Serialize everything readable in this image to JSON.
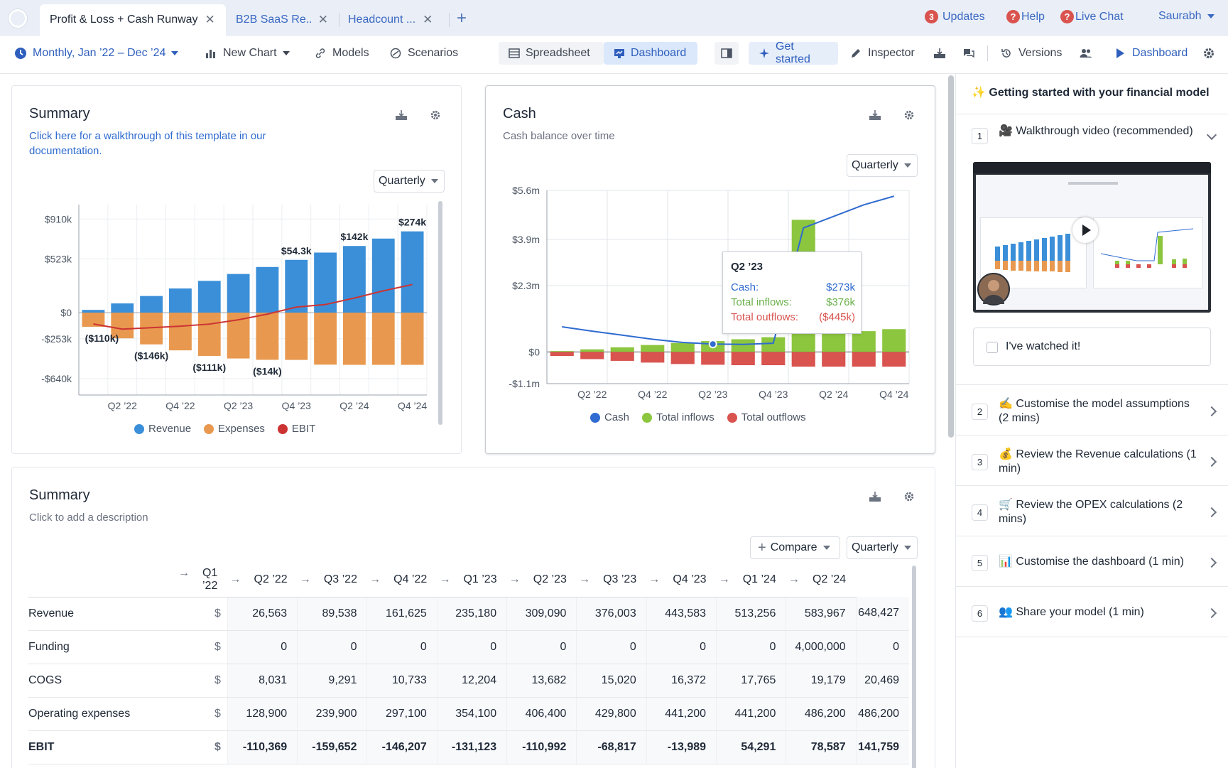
{
  "tabs": [
    {
      "label": "Profit & Loss + Cash Runway",
      "active": true
    },
    {
      "label": "B2B SaaS Re...",
      "active": false
    },
    {
      "label": "Headcount ...",
      "active": false
    }
  ],
  "topbar": {
    "updates_count": "3",
    "updates_label": "Updates",
    "help_label": "Help",
    "live_chat_label": "Live Chat",
    "user_name": "Saurabh"
  },
  "toolbar": {
    "period": "Monthly, Jan ’22 – Dec ’24",
    "new_chart": "New Chart",
    "models": "Models",
    "scenarios": "Scenarios",
    "spreadsheet": "Spreadsheet",
    "dashboard": "Dashboard",
    "get_started": "Get started",
    "inspector": "Inspector",
    "versions": "Versions",
    "present_dashboard": "Dashboard"
  },
  "summary_chart_card": {
    "title": "Summary",
    "description": "Click here for a walkthrough of this template in our documentation.",
    "granularity": "Quarterly"
  },
  "cash_card": {
    "title": "Cash",
    "description": "Cash balance over time",
    "granularity": "Quarterly",
    "tooltip": {
      "period": "Q2 ’23",
      "rows": [
        {
          "label": "Cash:",
          "value": "$273k",
          "color": "#2f6bd0"
        },
        {
          "label": "Total inflows:",
          "value": "$376k",
          "color": "#6ab04c"
        },
        {
          "label": "Total outflows:",
          "value": "($445k)",
          "color": "#d9534f"
        }
      ]
    }
  },
  "chart_data": [
    {
      "type": "bar",
      "title": "Summary",
      "categories": [
        "Q1 '22",
        "Q2 '22",
        "Q3 '22",
        "Q4 '22",
        "Q1 '23",
        "Q2 '23",
        "Q3 '23",
        "Q4 '23",
        "Q1 '24",
        "Q2 '24",
        "Q3 '24",
        "Q4 '24"
      ],
      "x_tick_labels": [
        "Q2 ’22",
        "Q4 ’22",
        "Q2 ’23",
        "Q4 ’23",
        "Q2 ’24",
        "Q4 ’24"
      ],
      "y_tick_labels": [
        "$910k",
        "$523k",
        "$0",
        "-$253k",
        "-$640k"
      ],
      "y_ticks": [
        910,
        523,
        0,
        -253,
        -640
      ],
      "ylim": [
        -800,
        1050
      ],
      "series": [
        {
          "name": "Revenue",
          "color": "#3a8fd8",
          "values": [
            27,
            90,
            162,
            235,
            309,
            376,
            444,
            513,
            584,
            648,
            720,
            790
          ]
        },
        {
          "name": "Expenses",
          "color": "#e8994f",
          "values": [
            -137,
            -249,
            -308,
            -366,
            -420,
            -445,
            -458,
            -459,
            -505,
            -507,
            -507,
            -507
          ]
        },
        {
          "name": "EBIT",
          "color": "#cc3333",
          "values": [
            -110,
            -160,
            -146,
            -131,
            -111,
            -69,
            -14,
            54,
            79,
            142,
            212,
            274
          ]
        }
      ],
      "data_labels": [
        {
          "text": "($110k)",
          "index": 0,
          "value": -110
        },
        {
          "text": "($146k)",
          "index": 2,
          "value": -146
        },
        {
          "text": "($111k)",
          "index": 4,
          "value": -111
        },
        {
          "text": "($14k)",
          "index": 6,
          "value": -14
        },
        {
          "text": "$54.3k",
          "index": 7,
          "value": 54.3
        },
        {
          "text": "$142k",
          "index": 9,
          "value": 142
        },
        {
          "text": "$274k",
          "index": 11,
          "value": 274
        }
      ],
      "legend": [
        "Revenue",
        "Expenses",
        "EBIT"
      ],
      "grid": true
    },
    {
      "type": "bar",
      "title": "Cash",
      "subtitle": "Cash balance over time",
      "categories": [
        "Q1 '22",
        "Q2 '22",
        "Q3 '22",
        "Q4 '22",
        "Q1 '23",
        "Q2 '23",
        "Q3 '23",
        "Q4 '23",
        "Q1 '24",
        "Q2 '24",
        "Q3 '24",
        "Q4 '24"
      ],
      "x_tick_labels": [
        "Q2 ’22",
        "Q4 ’22",
        "Q2 ’23",
        "Q4 ’23",
        "Q2 ’24",
        "Q4 ’24"
      ],
      "y_tick_labels": [
        "$5.6m",
        "$3.9m",
        "$2.3m",
        "$0",
        "-$1.1m"
      ],
      "y_ticks": [
        5.6,
        3.9,
        2.3,
        0,
        -1.1
      ],
      "ylim": [
        -1.1,
        5.6
      ],
      "series": [
        {
          "name": "Cash",
          "color": "#2f6bd0",
          "values": [
            0.87,
            0.72,
            0.58,
            0.44,
            0.33,
            0.273,
            0.26,
            0.3,
            4.3,
            4.7,
            5.1,
            5.4
          ]
        },
        {
          "name": "Total inflows",
          "color": "#8cc63f",
          "values": [
            0.03,
            0.09,
            0.16,
            0.24,
            0.31,
            0.376,
            0.44,
            0.51,
            4.58,
            0.65,
            0.72,
            0.79
          ]
        },
        {
          "name": "Total outflows",
          "color": "#d9534f",
          "values": [
            -0.14,
            -0.25,
            -0.31,
            -0.37,
            -0.42,
            -0.445,
            -0.46,
            -0.46,
            -0.51,
            -0.51,
            -0.51,
            -0.51
          ]
        }
      ],
      "legend": [
        "Cash",
        "Total inflows",
        "Total outflows"
      ],
      "grid": true
    }
  ],
  "summary_table_card": {
    "title": "Summary",
    "description": "Click to add a description",
    "compare_label": "Compare",
    "granularity": "Quarterly",
    "columns": [
      "Q1 ’22",
      "Q2 ’22",
      "Q3 ’22",
      "Q4 ’22",
      "Q1 ’23",
      "Q2 ’23",
      "Q3 ’23",
      "Q4 ’23",
      "Q1 ’24",
      "Q2 ’24"
    ],
    "rows": [
      {
        "label": "Revenue",
        "unit": "$",
        "bold": false,
        "values": [
          "26,563",
          "89,538",
          "161,625",
          "235,180",
          "309,090",
          "376,003",
          "443,583",
          "513,256",
          "583,967",
          "648,427"
        ]
      },
      {
        "label": "Funding",
        "unit": "$",
        "bold": false,
        "values": [
          "0",
          "0",
          "0",
          "0",
          "0",
          "0",
          "0",
          "0",
          "4,000,000",
          "0"
        ]
      },
      {
        "label": "COGS",
        "unit": "$",
        "bold": false,
        "values": [
          "8,031",
          "9,291",
          "10,733",
          "12,204",
          "13,682",
          "15,020",
          "16,372",
          "17,765",
          "19,179",
          "20,469"
        ]
      },
      {
        "label": "Operating expenses",
        "unit": "$",
        "bold": false,
        "values": [
          "128,900",
          "239,900",
          "297,100",
          "354,100",
          "406,400",
          "429,800",
          "441,200",
          "441,200",
          "486,200",
          "486,200"
        ]
      },
      {
        "label": "EBIT",
        "unit": "$",
        "bold": true,
        "values": [
          "-110,369",
          "-159,652",
          "-146,207",
          "-131,123",
          "-110,992",
          "-68,817",
          "-13,989",
          "54,291",
          "78,587",
          "141,759"
        ]
      }
    ]
  },
  "right_panel": {
    "title": "✨ Getting started with your financial model",
    "watched_label": "I've watched it!",
    "steps": [
      {
        "num": "1",
        "text": "🎥 Walkthrough video (recommended)"
      },
      {
        "num": "2",
        "text": "✍️ Customise the model assumptions (2 mins)"
      },
      {
        "num": "3",
        "text": "💰 Review the Revenue calculations (1 min)"
      },
      {
        "num": "4",
        "text": "🛒 Review the OPEX calculations (2 mins)"
      },
      {
        "num": "5",
        "text": "📊 Customise the dashboard (1 min)"
      },
      {
        "num": "6",
        "text": "👥 Share your model (1 min)"
      }
    ]
  }
}
